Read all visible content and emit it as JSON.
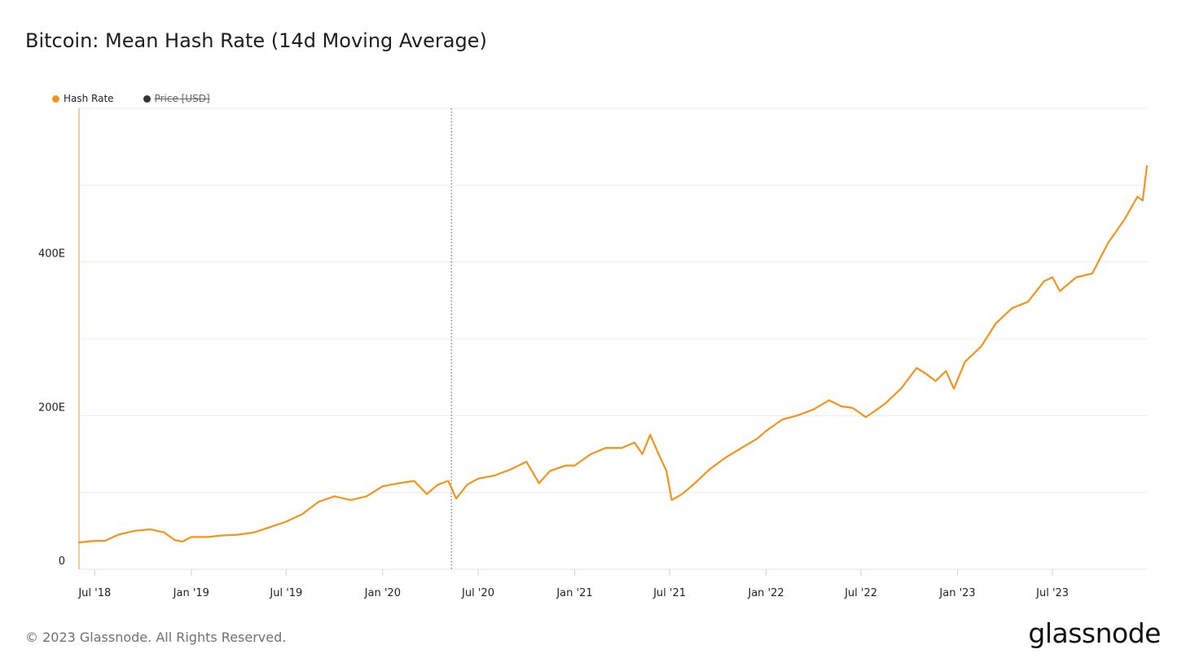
{
  "title": "Bitcoin: Mean Hash Rate (14d Moving Average)",
  "legend": [
    {
      "label": "Hash Rate",
      "color": "#f7931a",
      "active": true
    },
    {
      "label": "Price [USD]",
      "color": "#333333",
      "active": false
    }
  ],
  "footer": {
    "copyright": "© 2023 Glassnode. All Rights Reserved.",
    "brand": "glassnode"
  },
  "colors": {
    "series": "#f7931a",
    "grid": "#ececec",
    "axis_text": "#222222"
  },
  "chart_data": {
    "type": "line",
    "title": "Bitcoin: Mean Hash Rate (14d Moving Average)",
    "xlabel": "",
    "ylabel": "",
    "y_unit": "EH/s",
    "ylim": [
      0,
      600
    ],
    "xlim": [
      "2018-06-01",
      "2023-12-28"
    ],
    "y_ticks": [
      {
        "value": 0,
        "label": "0"
      },
      {
        "value": 200,
        "label": "200E"
      },
      {
        "value": 400,
        "label": "400E"
      }
    ],
    "y_gridlines": [
      100,
      200,
      300,
      400,
      500,
      600
    ],
    "x_ticks": [
      {
        "date": "2018-07-01",
        "label": "Jul '18"
      },
      {
        "date": "2019-01-01",
        "label": "Jan '19"
      },
      {
        "date": "2019-07-01",
        "label": "Jul '19"
      },
      {
        "date": "2020-01-01",
        "label": "Jan '20"
      },
      {
        "date": "2020-07-01",
        "label": "Jul '20"
      },
      {
        "date": "2021-01-01",
        "label": "Jan '21"
      },
      {
        "date": "2021-07-01",
        "label": "Jul '21"
      },
      {
        "date": "2022-01-01",
        "label": "Jan '22"
      },
      {
        "date": "2022-07-01",
        "label": "Jul '22"
      },
      {
        "date": "2023-01-01",
        "label": "Jan '23"
      },
      {
        "date": "2023-07-01",
        "label": "Jul '23"
      }
    ],
    "annotations": [
      {
        "type": "vertical-dotted-line",
        "date": "2020-05-11"
      }
    ],
    "grid": true,
    "legend_position": "top-left",
    "series": [
      {
        "name": "Hash Rate",
        "color": "#f7931a",
        "points": [
          [
            "2018-06-01",
            35
          ],
          [
            "2018-07-01",
            37
          ],
          [
            "2018-07-20",
            37
          ],
          [
            "2018-08-15",
            45
          ],
          [
            "2018-09-15",
            50
          ],
          [
            "2018-10-15",
            52
          ],
          [
            "2018-11-10",
            48
          ],
          [
            "2018-12-01",
            38
          ],
          [
            "2018-12-15",
            36
          ],
          [
            "2019-01-01",
            42
          ],
          [
            "2019-02-01",
            42
          ],
          [
            "2019-03-01",
            44
          ],
          [
            "2019-04-01",
            45
          ],
          [
            "2019-05-01",
            48
          ],
          [
            "2019-06-01",
            55
          ],
          [
            "2019-07-01",
            62
          ],
          [
            "2019-08-01",
            72
          ],
          [
            "2019-09-01",
            88
          ],
          [
            "2019-10-01",
            95
          ],
          [
            "2019-11-01",
            90
          ],
          [
            "2019-12-01",
            95
          ],
          [
            "2020-01-01",
            108
          ],
          [
            "2020-02-01",
            112
          ],
          [
            "2020-03-01",
            115
          ],
          [
            "2020-03-25",
            98
          ],
          [
            "2020-04-15",
            110
          ],
          [
            "2020-05-05",
            115
          ],
          [
            "2020-05-20",
            92
          ],
          [
            "2020-06-10",
            110
          ],
          [
            "2020-07-01",
            118
          ],
          [
            "2020-08-01",
            122
          ],
          [
            "2020-09-01",
            130
          ],
          [
            "2020-10-01",
            140
          ],
          [
            "2020-10-25",
            112
          ],
          [
            "2020-11-15",
            128
          ],
          [
            "2020-12-15",
            135
          ],
          [
            "2021-01-01",
            135
          ],
          [
            "2021-02-01",
            150
          ],
          [
            "2021-03-01",
            158
          ],
          [
            "2021-04-01",
            158
          ],
          [
            "2021-04-25",
            165
          ],
          [
            "2021-05-10",
            150
          ],
          [
            "2021-05-25",
            175
          ],
          [
            "2021-06-10",
            150
          ],
          [
            "2021-06-25",
            128
          ],
          [
            "2021-07-05",
            90
          ],
          [
            "2021-07-25",
            98
          ],
          [
            "2021-08-15",
            110
          ],
          [
            "2021-09-15",
            130
          ],
          [
            "2021-10-15",
            145
          ],
          [
            "2021-11-15",
            158
          ],
          [
            "2021-12-15",
            170
          ],
          [
            "2022-01-01",
            180
          ],
          [
            "2022-02-01",
            195
          ],
          [
            "2022-03-01",
            200
          ],
          [
            "2022-04-01",
            208
          ],
          [
            "2022-05-01",
            220
          ],
          [
            "2022-05-25",
            212
          ],
          [
            "2022-06-15",
            210
          ],
          [
            "2022-07-10",
            198
          ],
          [
            "2022-07-25",
            205
          ],
          [
            "2022-08-15",
            215
          ],
          [
            "2022-09-15",
            235
          ],
          [
            "2022-10-15",
            262
          ],
          [
            "2022-11-01",
            255
          ],
          [
            "2022-11-20",
            245
          ],
          [
            "2022-12-10",
            258
          ],
          [
            "2022-12-25",
            235
          ],
          [
            "2023-01-15",
            270
          ],
          [
            "2023-02-15",
            290
          ],
          [
            "2023-03-15",
            320
          ],
          [
            "2023-04-15",
            340
          ],
          [
            "2023-05-15",
            348
          ],
          [
            "2023-06-15",
            375
          ],
          [
            "2023-07-01",
            380
          ],
          [
            "2023-07-15",
            362
          ],
          [
            "2023-08-15",
            380
          ],
          [
            "2023-09-15",
            385
          ],
          [
            "2023-10-15",
            425
          ],
          [
            "2023-11-15",
            455
          ],
          [
            "2023-12-10",
            485
          ],
          [
            "2023-12-20",
            480
          ],
          [
            "2023-12-28",
            525
          ]
        ]
      }
    ]
  }
}
